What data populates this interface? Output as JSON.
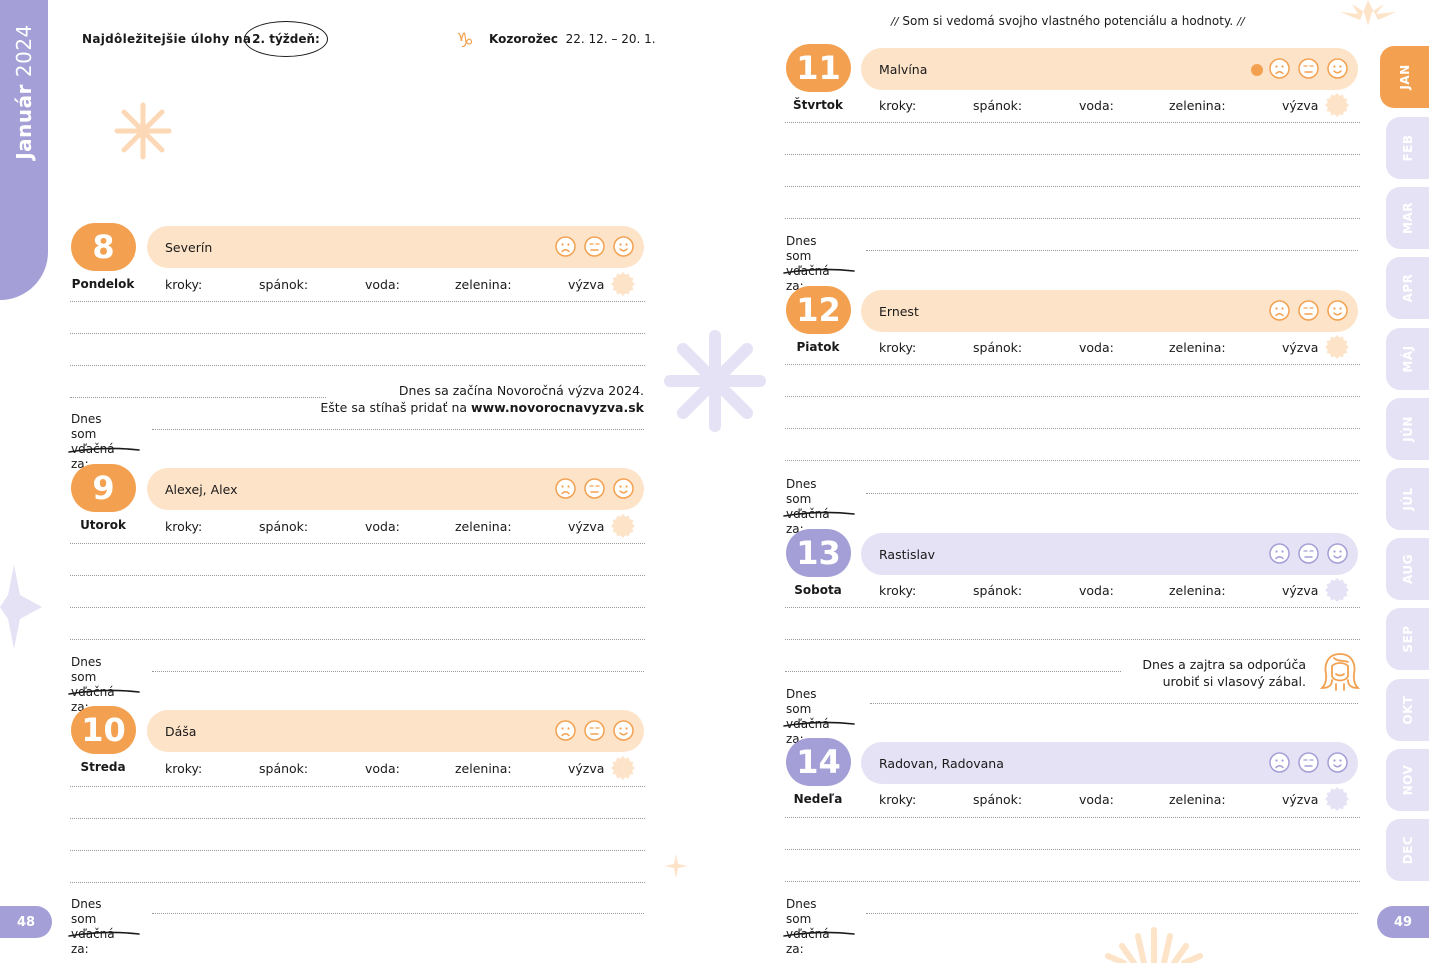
{
  "month_bar": {
    "month": "Január",
    "year": "2024"
  },
  "pages": {
    "left": "48",
    "right": "49"
  },
  "header": {
    "tasks_label": "Najdôležitejšie úlohy na",
    "week_label": "2. týždeň:",
    "zodiac_symbol": "♑",
    "zodiac_name": "Kozorožec",
    "zodiac_dates": "22. 12. – 20. 1."
  },
  "quote": {
    "open": "//",
    "text": "Som si vedomá svojho vlastného potenciálu a hodnoty.",
    "close": "//"
  },
  "stats_labels": {
    "steps": "kroky:",
    "sleep": "spánok:",
    "water": "voda:",
    "veg": "zelenina:",
    "challenge": "výzva"
  },
  "gratitude_label": [
    "Dnes som",
    "vďačná za:"
  ],
  "days": [
    {
      "number": "8",
      "weekday": "Pondelok",
      "names": "Severín",
      "mood_dot": false
    },
    {
      "number": "9",
      "weekday": "Utorok",
      "names": "Alexej, Alex",
      "mood_dot": false
    },
    {
      "number": "10",
      "weekday": "Streda",
      "names": "Dáša",
      "mood_dot": false
    },
    {
      "number": "11",
      "weekday": "Štvrtok",
      "names": "Malvína",
      "mood_dot": true
    },
    {
      "number": "12",
      "weekday": "Piatok",
      "names": "Ernest",
      "mood_dot": false
    },
    {
      "number": "13",
      "weekday": "Sobota",
      "names": "Rastislav",
      "mood_dot": false
    },
    {
      "number": "14",
      "weekday": "Nedeľa",
      "names": "Radovan, Radovana",
      "mood_dot": false
    }
  ],
  "notes": {
    "day8": {
      "line1": "Dnes sa začína Novoročná výzva 2024.",
      "line2_prefix": "Ešte sa stíhaš pridať na",
      "line2_link": "www.novorocnavyzva.sk"
    },
    "day13": {
      "line1": "Dnes a zajtra sa odporúča",
      "line2": "urobiť si vlasový zábal."
    }
  },
  "month_tabs": [
    "JAN",
    "FEB",
    "MAR",
    "APR",
    "MÁJ",
    "JÚN",
    "JÚL",
    "AUG",
    "SEP",
    "OKT",
    "NOV",
    "DEC"
  ],
  "colors": {
    "orange": "#f3a150",
    "orange_light": "#fde3c8",
    "purple": "#a49fd6",
    "purple_light": "#e4e2f4"
  },
  "icons": {
    "mood_faces": [
      "sad-face-icon",
      "neutral-face-icon",
      "happy-face-icon"
    ],
    "challenge": "sun-badge-icon",
    "hair_mask": "hair-woman-icon",
    "zodiac": "capricorn-icon"
  }
}
